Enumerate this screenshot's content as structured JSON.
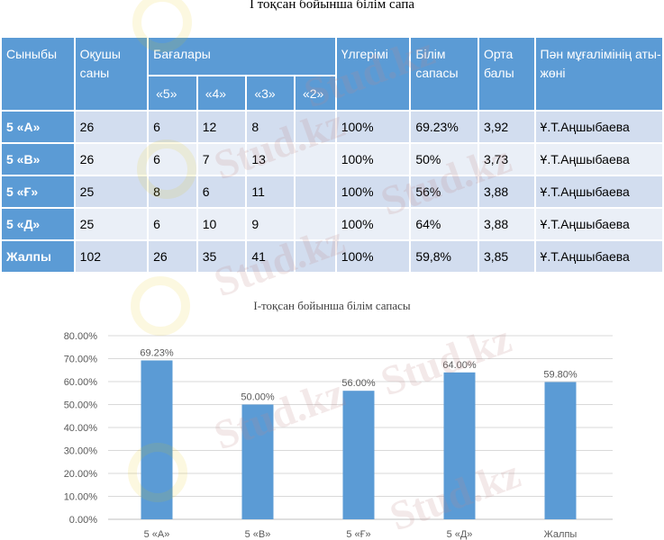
{
  "document": {
    "title": "І тоқсан бойынша білім сапа"
  },
  "table": {
    "headers": {
      "class": "Сыныбы",
      "students": "Оқушы саны",
      "grades": "Бағалары",
      "grade_5": "«5»",
      "grade_4": "«4»",
      "grade_3": "«3»",
      "grade_2": "«2»",
      "progress": "Үлгерімі",
      "quality": "Білім сапасы",
      "average": "Орта балы",
      "teacher": "Пән мұғалімінің аты-жөні"
    },
    "rows": [
      {
        "class": "5 «А»",
        "students": "26",
        "g5": "6",
        "g4": "12",
        "g3": "8",
        "g2": "",
        "progress": "100%",
        "quality": "69.23%",
        "average": "3,92",
        "teacher": "Ұ.Т.Аңшыбаева"
      },
      {
        "class": "5 «В»",
        "students": "26",
        "g5": "6",
        "g4": "7",
        "g3": "13",
        "g2": "",
        "progress": "100%",
        "quality": "50%",
        "average": "3,73",
        "teacher": "Ұ.Т.Аңшыбаева"
      },
      {
        "class": "5 «Ғ»",
        "students": "25",
        "g5": "8",
        "g4": "6",
        "g3": "11",
        "g2": "",
        "progress": "100%",
        "quality": "56%",
        "average": "3,88",
        "teacher": "Ұ.Т.Аңшыбаева"
      },
      {
        "class": "5 «Д»",
        "students": "25",
        "g5": "6",
        "g4": "10",
        "g3": "9",
        "g2": "",
        "progress": "100%",
        "quality": "64%",
        "average": "3,88",
        "teacher": "Ұ.Т.Аңшыбаева"
      },
      {
        "class": "Жалпы",
        "students": "102",
        "g5": "26",
        "g4": "35",
        "g3": "41",
        "g2": "",
        "progress": "100%",
        "quality": "59,8%",
        "average": "3,85",
        "teacher": "Ұ.Т.Аңшыбаева"
      }
    ]
  },
  "watermark": {
    "text": "Stud.kz"
  },
  "chart_data": {
    "type": "bar",
    "title": "І-тоқсан бойынша білім сапасы",
    "categories": [
      "5 «А»",
      "5 «В»",
      "5 «Ғ»",
      "5 «Д»",
      "Жалпы"
    ],
    "values": [
      69.23,
      50.0,
      56.0,
      64.0,
      59.8
    ],
    "value_labels": [
      "69.23%",
      "50.00%",
      "56.00%",
      "64.00%",
      "59.80%"
    ],
    "yticks": [
      "0.00%",
      "10.00%",
      "20.00%",
      "30.00%",
      "40.00%",
      "50.00%",
      "60.00%",
      "70.00%",
      "80.00%"
    ],
    "ylim": [
      0,
      80
    ],
    "xlabel": "",
    "ylabel": "",
    "grid": true,
    "bar_color": "#5b9bd5"
  }
}
